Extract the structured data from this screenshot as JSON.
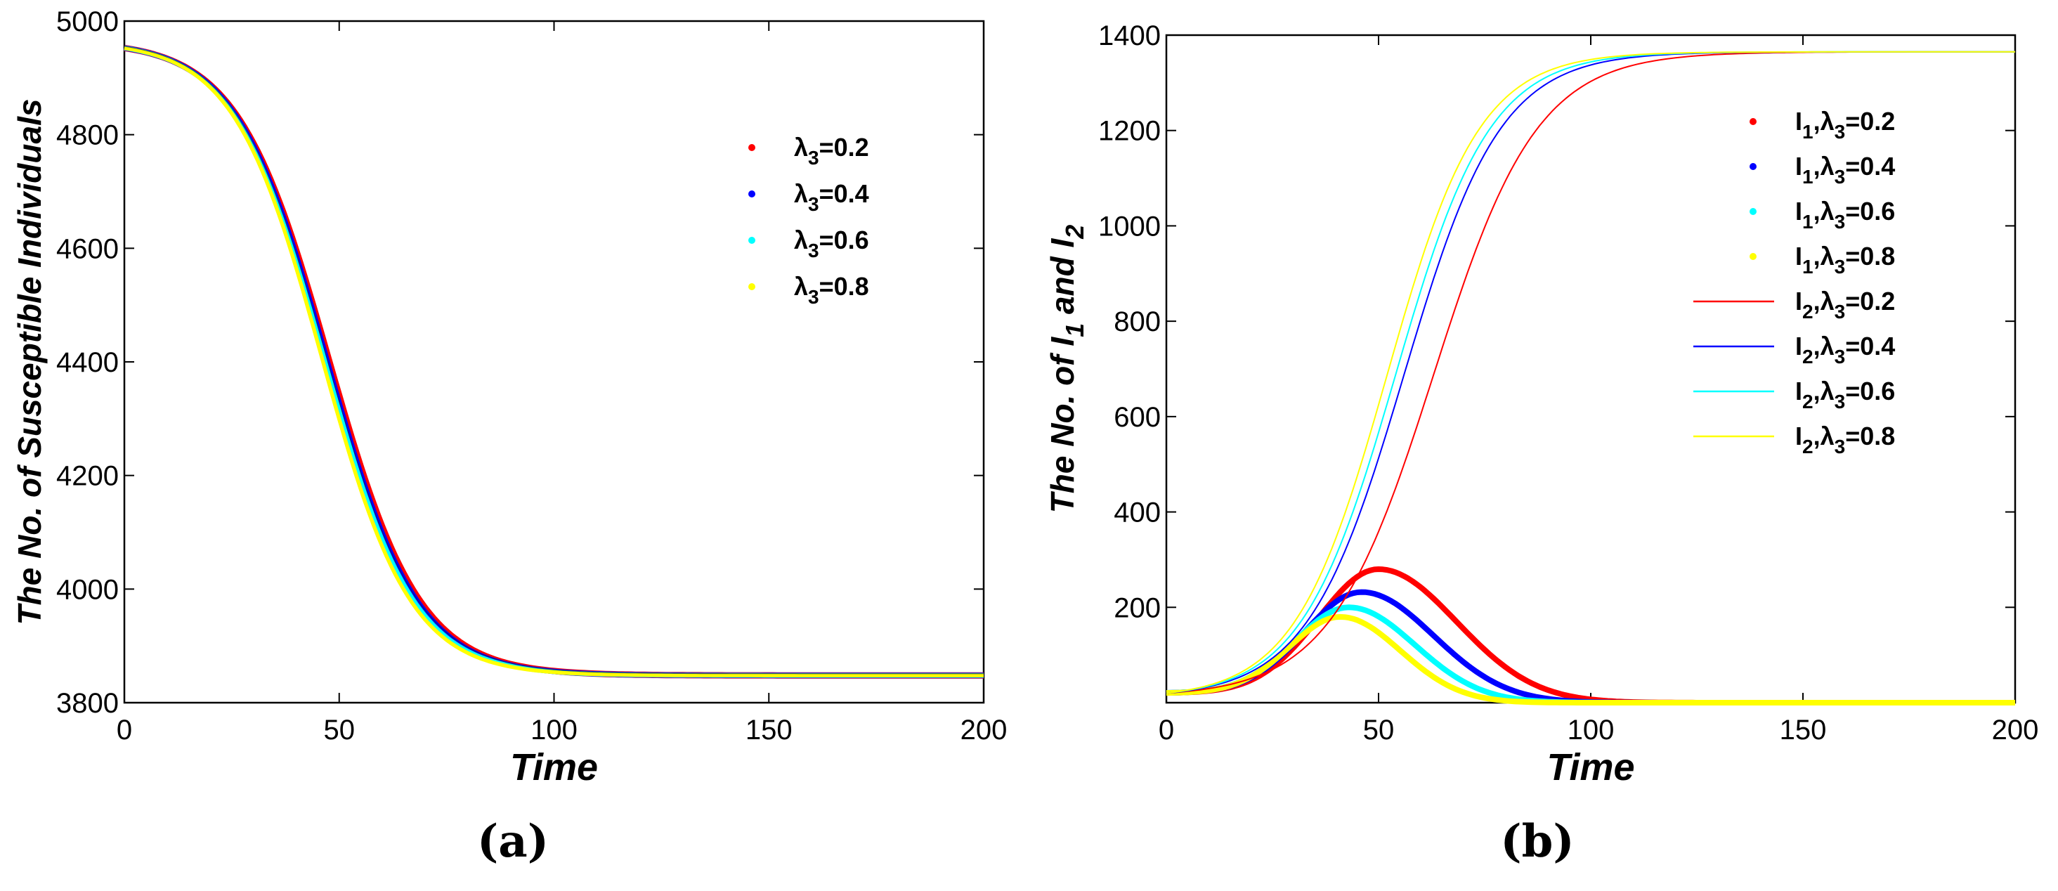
{
  "chart_data": [
    {
      "id": "a",
      "type": "line",
      "panel_label": "(a)",
      "xlabel": "Time",
      "ylabel": "The No. of Susceptible Individuals",
      "xlim": [
        0,
        200
      ],
      "ylim": [
        3800,
        5000
      ],
      "xticks": [
        0,
        50,
        100,
        150,
        200
      ],
      "xtick_labels": [
        "0",
        "50",
        "100",
        "150",
        "200"
      ],
      "yticks": [
        3800,
        4000,
        4200,
        4400,
        4600,
        4800,
        5000
      ],
      "ytick_labels": [
        "3800",
        "4000",
        "4200",
        "4400",
        "4600",
        "4800",
        "5000"
      ],
      "legend_position": "top-right",
      "series": [
        {
          "name": "λ3=0.2",
          "legend_label": {
            "sym": "λ",
            "sub": "3",
            "rest": "=0.2"
          },
          "color": "#ff0000",
          "style": "markers",
          "S0": 4965,
          "Sinf": 3848,
          "t_mid": 47.5,
          "k": 0.0945
        },
        {
          "name": "λ3=0.4",
          "legend_label": {
            "sym": "λ",
            "sub": "3",
            "rest": "=0.4"
          },
          "color": "#0000ff",
          "style": "markers",
          "S0": 4965,
          "Sinf": 3848,
          "t_mid": 47.0,
          "k": 0.0955
        },
        {
          "name": "λ3=0.6",
          "legend_label": {
            "sym": "λ",
            "sub": "3",
            "rest": "=0.6"
          },
          "color": "#00ffff",
          "style": "markers",
          "S0": 4965,
          "Sinf": 3848,
          "t_mid": 46.5,
          "k": 0.0965
        },
        {
          "name": "λ3=0.8",
          "legend_label": {
            "sym": "λ",
            "sub": "3",
            "rest": "=0.8"
          },
          "color": "#ffff00",
          "style": "markers",
          "S0": 4965,
          "Sinf": 3848,
          "t_mid": 46.0,
          "k": 0.0975
        }
      ]
    },
    {
      "id": "b",
      "type": "line",
      "panel_label": "(b)",
      "xlabel": "Time",
      "ylabel": "The No. of I1 and I2",
      "ylabel_parts": {
        "a": "The No. of I",
        "a_sub": "1",
        "b": " and I",
        "b_sub": "2"
      },
      "xlim": [
        0,
        200
      ],
      "ylim": [
        0,
        1400
      ],
      "xticks": [
        0,
        50,
        100,
        150,
        200
      ],
      "xtick_labels": [
        "0",
        "50",
        "100",
        "150",
        "200"
      ],
      "yticks": [
        200,
        400,
        600,
        800,
        1000,
        1200,
        1400
      ],
      "ytick_labels": [
        "200",
        "400",
        "600",
        "800",
        "1000",
        "1200",
        "1400"
      ],
      "legend_position": "top-right",
      "series": [
        {
          "name": "I1,λ3=0.2",
          "legend_label": {
            "a": "I",
            "a_sub": "1",
            "sym": ",λ",
            "sub": "3",
            "rest": "=0.2"
          },
          "color": "#ff0000",
          "style": "markers",
          "kind": "peak",
          "peak_t": 50,
          "peak_v": 280,
          "rise_w": 20,
          "fall_w": 26,
          "I0": 20
        },
        {
          "name": "I1,λ3=0.4",
          "legend_label": {
            "a": "I",
            "a_sub": "1",
            "sym": ",λ",
            "sub": "3",
            "rest": "=0.4"
          },
          "color": "#0000ff",
          "style": "markers",
          "kind": "peak",
          "peak_t": 46,
          "peak_v": 232,
          "rise_w": 19,
          "fall_w": 24,
          "I0": 20
        },
        {
          "name": "I1,λ3=0.6",
          "legend_label": {
            "a": "I",
            "a_sub": "1",
            "sym": ",λ",
            "sub": "3",
            "rest": "=0.6"
          },
          "color": "#00ffff",
          "style": "markers",
          "kind": "peak",
          "peak_t": 43,
          "peak_v": 200,
          "rise_w": 18,
          "fall_w": 22,
          "I0": 20
        },
        {
          "name": "I1,λ3=0.8",
          "legend_label": {
            "a": "I",
            "a_sub": "1",
            "sym": ",λ",
            "sub": "3",
            "rest": "=0.8"
          },
          "color": "#ffff00",
          "style": "markers",
          "kind": "peak",
          "peak_t": 41,
          "peak_v": 180,
          "rise_w": 17,
          "fall_w": 20,
          "I0": 20
        },
        {
          "name": "I2,λ3=0.2",
          "legend_label": {
            "a": "I",
            "a_sub": "2",
            "sym": ",λ",
            "sub": "3",
            "rest": "=0.2"
          },
          "color": "#ff0000",
          "style": "line",
          "kind": "logistic",
          "I0": 20,
          "Kmax": 1365,
          "t_mid": 63,
          "k": 0.082
        },
        {
          "name": "I2,λ3=0.4",
          "legend_label": {
            "a": "I",
            "a_sub": "2",
            "sym": ",λ",
            "sub": "3",
            "rest": "=0.4"
          },
          "color": "#0000ff",
          "style": "line",
          "kind": "logistic",
          "I0": 20,
          "Kmax": 1365,
          "t_mid": 56,
          "k": 0.088
        },
        {
          "name": "I2,λ3=0.6",
          "legend_label": {
            "a": "I",
            "a_sub": "2",
            "sym": ",λ",
            "sub": "3",
            "rest": "=0.6"
          },
          "color": "#00ffff",
          "style": "line",
          "kind": "logistic",
          "I0": 20,
          "Kmax": 1365,
          "t_mid": 54,
          "k": 0.09
        },
        {
          "name": "I2,λ3=0.8",
          "legend_label": {
            "a": "I",
            "a_sub": "2",
            "sym": ",λ",
            "sub": "3",
            "rest": "=0.8"
          },
          "color": "#ffff00",
          "style": "line",
          "kind": "logistic",
          "I0": 20,
          "Kmax": 1365,
          "t_mid": 52,
          "k": 0.092
        }
      ]
    }
  ]
}
